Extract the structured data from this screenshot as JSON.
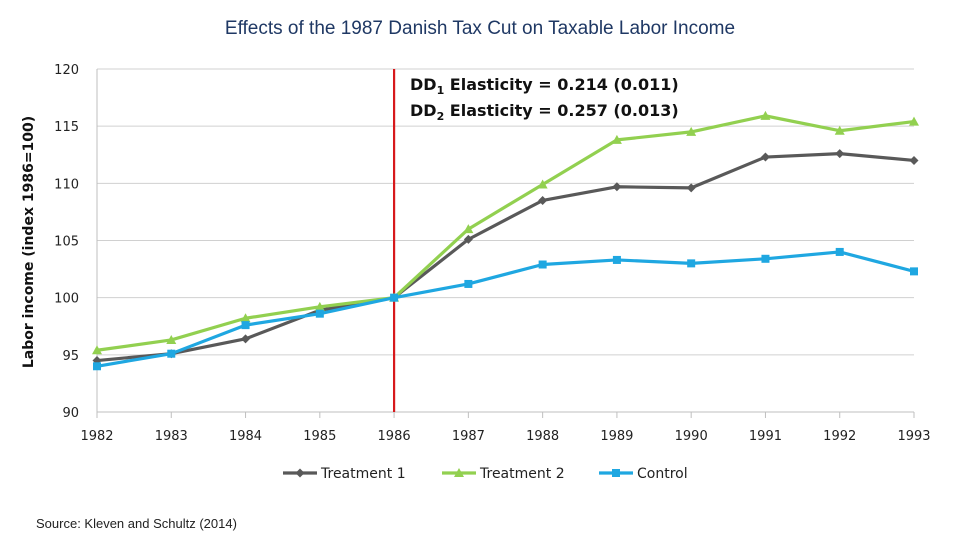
{
  "slide": {
    "title": "Effects of the 1987 Danish Tax Cut on Taxable Labor Income",
    "source": "Source: Kleven and Schultz (2014)"
  },
  "chart_data": {
    "type": "line",
    "x": [
      1982,
      1983,
      1984,
      1985,
      1986,
      1987,
      1988,
      1989,
      1990,
      1991,
      1992,
      1993
    ],
    "ylabel": "Labor  income (index 1986=100)",
    "ylim": [
      90,
      120
    ],
    "yticks": [
      90,
      95,
      100,
      105,
      110,
      115,
      120
    ],
    "grid": true,
    "legend_position": "bottom",
    "vline": {
      "x": 1986,
      "color": "#d7191c"
    },
    "annotation": {
      "line1": {
        "main": "DD",
        "sub": "1",
        "rest": " Elasticity = 0.214 (0.011)"
      },
      "line2": {
        "main": "DD",
        "sub": "2",
        "rest": " Elasticity = 0.257 (0.013)"
      }
    },
    "series": [
      {
        "name": "Treatment 1",
        "color": "#595959",
        "marker": "diamond",
        "values": [
          94.5,
          95.1,
          96.4,
          98.9,
          100.0,
          105.1,
          108.5,
          109.7,
          109.6,
          112.3,
          112.6,
          112.0
        ]
      },
      {
        "name": "Treatment 2",
        "color": "#92d050",
        "marker": "triangle",
        "values": [
          95.4,
          96.3,
          98.2,
          99.2,
          100.0,
          106.0,
          109.9,
          113.8,
          114.5,
          115.9,
          114.6,
          115.4
        ]
      },
      {
        "name": "Control",
        "color": "#1fa7e1",
        "marker": "square",
        "values": [
          94.0,
          95.1,
          97.6,
          98.6,
          100.0,
          101.2,
          102.9,
          103.3,
          103.0,
          103.4,
          104.0,
          102.3
        ]
      }
    ]
  }
}
